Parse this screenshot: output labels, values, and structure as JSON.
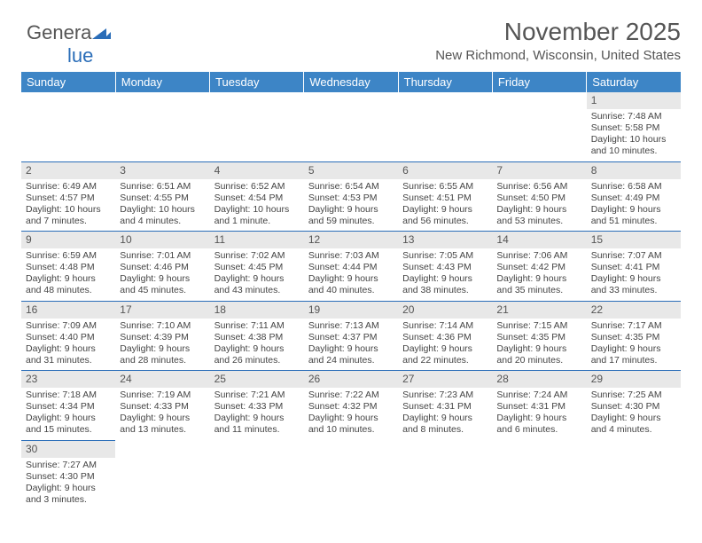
{
  "logo": {
    "text1": "Genera",
    "text2": "lue"
  },
  "title": "November 2025",
  "location": "New Richmond, Wisconsin, United States",
  "colors": {
    "header_bg": "#3d85c6",
    "header_text": "#ffffff",
    "daynum_bg": "#e8e8e8",
    "row_divider": "#2a6db8",
    "text": "#444444",
    "title_color": "#555555"
  },
  "fonts": {
    "title_size_pt": 21,
    "location_size_pt": 11,
    "dayhead_size_pt": 10,
    "cell_size_pt": 8
  },
  "day_headers": [
    "Sunday",
    "Monday",
    "Tuesday",
    "Wednesday",
    "Thursday",
    "Friday",
    "Saturday"
  ],
  "weeks": [
    [
      null,
      null,
      null,
      null,
      null,
      null,
      {
        "n": "1",
        "sunrise": "Sunrise: 7:48 AM",
        "sunset": "Sunset: 5:58 PM",
        "daylight": "Daylight: 10 hours and 10 minutes."
      }
    ],
    [
      {
        "n": "2",
        "sunrise": "Sunrise: 6:49 AM",
        "sunset": "Sunset: 4:57 PM",
        "daylight": "Daylight: 10 hours and 7 minutes."
      },
      {
        "n": "3",
        "sunrise": "Sunrise: 6:51 AM",
        "sunset": "Sunset: 4:55 PM",
        "daylight": "Daylight: 10 hours and 4 minutes."
      },
      {
        "n": "4",
        "sunrise": "Sunrise: 6:52 AM",
        "sunset": "Sunset: 4:54 PM",
        "daylight": "Daylight: 10 hours and 1 minute."
      },
      {
        "n": "5",
        "sunrise": "Sunrise: 6:54 AM",
        "sunset": "Sunset: 4:53 PM",
        "daylight": "Daylight: 9 hours and 59 minutes."
      },
      {
        "n": "6",
        "sunrise": "Sunrise: 6:55 AM",
        "sunset": "Sunset: 4:51 PM",
        "daylight": "Daylight: 9 hours and 56 minutes."
      },
      {
        "n": "7",
        "sunrise": "Sunrise: 6:56 AM",
        "sunset": "Sunset: 4:50 PM",
        "daylight": "Daylight: 9 hours and 53 minutes."
      },
      {
        "n": "8",
        "sunrise": "Sunrise: 6:58 AM",
        "sunset": "Sunset: 4:49 PM",
        "daylight": "Daylight: 9 hours and 51 minutes."
      }
    ],
    [
      {
        "n": "9",
        "sunrise": "Sunrise: 6:59 AM",
        "sunset": "Sunset: 4:48 PM",
        "daylight": "Daylight: 9 hours and 48 minutes."
      },
      {
        "n": "10",
        "sunrise": "Sunrise: 7:01 AM",
        "sunset": "Sunset: 4:46 PM",
        "daylight": "Daylight: 9 hours and 45 minutes."
      },
      {
        "n": "11",
        "sunrise": "Sunrise: 7:02 AM",
        "sunset": "Sunset: 4:45 PM",
        "daylight": "Daylight: 9 hours and 43 minutes."
      },
      {
        "n": "12",
        "sunrise": "Sunrise: 7:03 AM",
        "sunset": "Sunset: 4:44 PM",
        "daylight": "Daylight: 9 hours and 40 minutes."
      },
      {
        "n": "13",
        "sunrise": "Sunrise: 7:05 AM",
        "sunset": "Sunset: 4:43 PM",
        "daylight": "Daylight: 9 hours and 38 minutes."
      },
      {
        "n": "14",
        "sunrise": "Sunrise: 7:06 AM",
        "sunset": "Sunset: 4:42 PM",
        "daylight": "Daylight: 9 hours and 35 minutes."
      },
      {
        "n": "15",
        "sunrise": "Sunrise: 7:07 AM",
        "sunset": "Sunset: 4:41 PM",
        "daylight": "Daylight: 9 hours and 33 minutes."
      }
    ],
    [
      {
        "n": "16",
        "sunrise": "Sunrise: 7:09 AM",
        "sunset": "Sunset: 4:40 PM",
        "daylight": "Daylight: 9 hours and 31 minutes."
      },
      {
        "n": "17",
        "sunrise": "Sunrise: 7:10 AM",
        "sunset": "Sunset: 4:39 PM",
        "daylight": "Daylight: 9 hours and 28 minutes."
      },
      {
        "n": "18",
        "sunrise": "Sunrise: 7:11 AM",
        "sunset": "Sunset: 4:38 PM",
        "daylight": "Daylight: 9 hours and 26 minutes."
      },
      {
        "n": "19",
        "sunrise": "Sunrise: 7:13 AM",
        "sunset": "Sunset: 4:37 PM",
        "daylight": "Daylight: 9 hours and 24 minutes."
      },
      {
        "n": "20",
        "sunrise": "Sunrise: 7:14 AM",
        "sunset": "Sunset: 4:36 PM",
        "daylight": "Daylight: 9 hours and 22 minutes."
      },
      {
        "n": "21",
        "sunrise": "Sunrise: 7:15 AM",
        "sunset": "Sunset: 4:35 PM",
        "daylight": "Daylight: 9 hours and 20 minutes."
      },
      {
        "n": "22",
        "sunrise": "Sunrise: 7:17 AM",
        "sunset": "Sunset: 4:35 PM",
        "daylight": "Daylight: 9 hours and 17 minutes."
      }
    ],
    [
      {
        "n": "23",
        "sunrise": "Sunrise: 7:18 AM",
        "sunset": "Sunset: 4:34 PM",
        "daylight": "Daylight: 9 hours and 15 minutes."
      },
      {
        "n": "24",
        "sunrise": "Sunrise: 7:19 AM",
        "sunset": "Sunset: 4:33 PM",
        "daylight": "Daylight: 9 hours and 13 minutes."
      },
      {
        "n": "25",
        "sunrise": "Sunrise: 7:21 AM",
        "sunset": "Sunset: 4:33 PM",
        "daylight": "Daylight: 9 hours and 11 minutes."
      },
      {
        "n": "26",
        "sunrise": "Sunrise: 7:22 AM",
        "sunset": "Sunset: 4:32 PM",
        "daylight": "Daylight: 9 hours and 10 minutes."
      },
      {
        "n": "27",
        "sunrise": "Sunrise: 7:23 AM",
        "sunset": "Sunset: 4:31 PM",
        "daylight": "Daylight: 9 hours and 8 minutes."
      },
      {
        "n": "28",
        "sunrise": "Sunrise: 7:24 AM",
        "sunset": "Sunset: 4:31 PM",
        "daylight": "Daylight: 9 hours and 6 minutes."
      },
      {
        "n": "29",
        "sunrise": "Sunrise: 7:25 AM",
        "sunset": "Sunset: 4:30 PM",
        "daylight": "Daylight: 9 hours and 4 minutes."
      }
    ],
    [
      {
        "n": "30",
        "sunrise": "Sunrise: 7:27 AM",
        "sunset": "Sunset: 4:30 PM",
        "daylight": "Daylight: 9 hours and 3 minutes."
      },
      null,
      null,
      null,
      null,
      null,
      null
    ]
  ]
}
